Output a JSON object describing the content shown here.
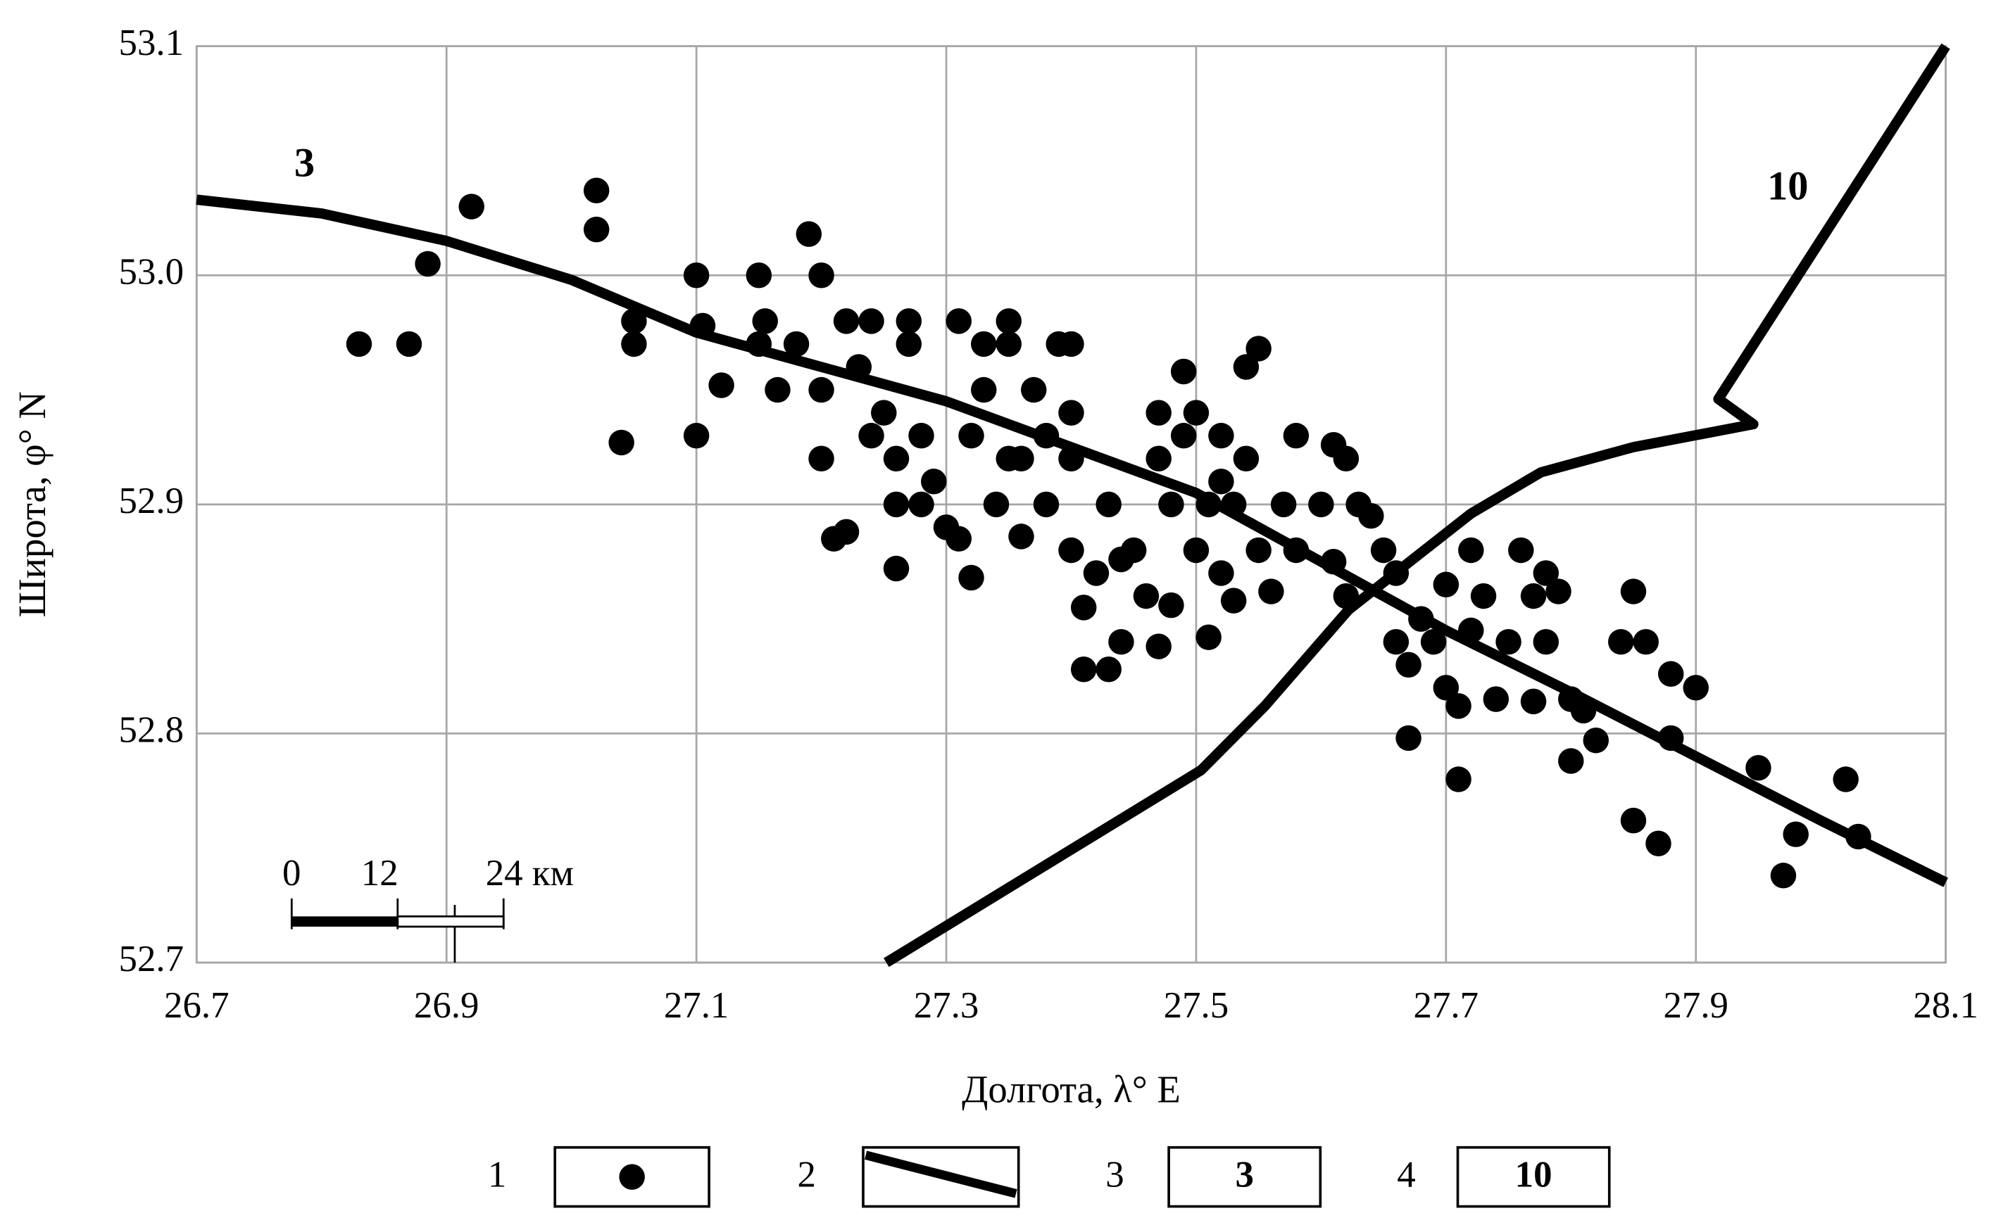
{
  "chart_data": {
    "type": "scatter",
    "xlabel": "Долгота, λ° E",
    "ylabel": "Широта, φ° N",
    "xlim": [
      26.7,
      28.1
    ],
    "ylim": [
      52.7,
      53.1
    ],
    "xticks": [
      26.7,
      26.9,
      27.1,
      27.3,
      27.5,
      27.7,
      27.9,
      28.1
    ],
    "yticks": [
      52.7,
      52.8,
      52.9,
      {
        "value": 53.0,
        "label": "53.0"
      },
      53.1
    ],
    "grid": true,
    "series": [
      {
        "name": "1",
        "color": "#000000",
        "x": [
          26.83,
          26.87,
          26.885,
          26.92,
          27.02,
          27.02,
          27.05,
          27.05,
          27.04,
          27.1,
          27.105,
          27.1,
          27.12,
          27.15,
          27.155,
          27.15,
          27.165,
          27.18,
          27.19,
          27.2,
          27.2,
          27.2,
          27.21,
          27.22,
          27.22,
          27.23,
          27.24,
          27.24,
          27.25,
          27.26,
          27.26,
          27.26,
          27.27,
          27.27,
          27.28,
          27.28,
          27.29,
          27.3,
          27.31,
          27.31,
          27.32,
          27.32,
          27.33,
          27.33,
          27.34,
          27.35,
          27.35,
          27.35,
          27.36,
          27.37,
          27.38,
          27.38,
          27.39,
          27.4,
          27.4,
          27.4,
          27.4,
          27.41,
          27.41,
          27.42,
          27.43,
          27.43,
          27.44,
          27.45,
          27.46,
          27.47,
          27.47,
          27.47,
          27.48,
          27.48,
          27.49,
          27.49,
          27.5,
          27.5,
          27.51,
          27.51,
          27.52,
          27.52,
          27.53,
          27.53,
          27.54,
          27.54,
          27.55,
          27.55,
          27.56,
          27.57,
          27.58,
          27.58,
          27.6,
          27.61,
          27.61,
          27.62,
          27.62,
          27.63,
          27.64,
          27.65,
          27.66,
          27.66,
          27.67,
          27.67,
          27.68,
          27.69,
          27.7,
          27.7,
          27.71,
          27.71,
          27.72,
          27.72,
          27.73,
          27.74,
          27.75,
          27.76,
          27.77,
          27.78,
          27.78,
          27.79,
          27.8,
          27.8,
          27.81,
          27.82,
          27.84,
          27.85,
          27.85,
          27.86,
          27.87,
          27.88,
          27.88,
          27.9,
          27.95,
          27.97,
          27.98,
          28.02,
          28.03,
          27.77,
          27.36,
          27.44,
          27.52
        ],
        "values": [
          52.97,
          52.97,
          53.005,
          53.03,
          53.037,
          53.02,
          52.98,
          52.97,
          52.927,
          53.0,
          52.978,
          52.93,
          52.952,
          53.0,
          52.98,
          52.97,
          52.95,
          52.97,
          53.018,
          53.0,
          52.95,
          52.92,
          52.885,
          52.888,
          52.98,
          52.96,
          52.98,
          52.93,
          52.94,
          52.9,
          52.92,
          52.872,
          52.98,
          52.97,
          52.93,
          52.9,
          52.91,
          52.89,
          52.98,
          52.885,
          52.93,
          52.868,
          52.95,
          52.97,
          52.9,
          52.98,
          52.97,
          52.92,
          52.886,
          52.95,
          52.93,
          52.9,
          52.97,
          52.97,
          52.94,
          52.92,
          52.88,
          52.855,
          52.828,
          52.87,
          52.9,
          52.828,
          52.84,
          52.88,
          52.86,
          52.94,
          52.92,
          52.838,
          52.9,
          52.856,
          52.958,
          52.93,
          52.94,
          52.88,
          52.9,
          52.842,
          52.93,
          52.87,
          52.9,
          52.858,
          52.96,
          52.92,
          52.968,
          52.88,
          52.862,
          52.9,
          52.93,
          52.88,
          52.9,
          52.926,
          52.875,
          52.92,
          52.86,
          52.9,
          52.895,
          52.88,
          52.84,
          52.87,
          52.83,
          52.798,
          52.85,
          52.84,
          52.865,
          52.82,
          52.812,
          52.78,
          52.88,
          52.845,
          52.86,
          52.815,
          52.84,
          52.88,
          52.86,
          52.84,
          52.87,
          52.862,
          52.815,
          52.788,
          52.81,
          52.797,
          52.84,
          52.862,
          52.762,
          52.84,
          52.752,
          52.826,
          52.798,
          52.82,
          52.785,
          52.738,
          52.756,
          52.78,
          52.755,
          52.814,
          52.92,
          52.876,
          52.91
        ]
      }
    ],
    "lines": [
      {
        "label": "3",
        "color": "#000000",
        "x": [
          26.7,
          26.8,
          26.9,
          27.0,
          27.1,
          27.2,
          27.3,
          27.4,
          27.5,
          27.6,
          27.7,
          27.8,
          27.9,
          28.0,
          28.1
        ],
        "values": [
          53.033,
          53.027,
          53.015,
          52.998,
          52.975,
          52.96,
          52.945,
          52.925,
          52.905,
          52.875,
          52.845,
          52.818,
          52.79,
          52.762,
          52.735
        ]
      },
      {
        "label": "10",
        "color": "#000000",
        "x": [
          27.252,
          27.504,
          27.555,
          27.622,
          27.72,
          27.776,
          27.85,
          27.946,
          27.918,
          28.1
        ],
        "values": [
          52.7,
          52.784,
          52.812,
          52.854,
          52.896,
          52.914,
          52.925,
          52.935,
          52.946,
          53.1
        ]
      }
    ],
    "scale_bar": {
      "ticks": [
        0,
        12,
        {
          "value": 24,
          "label": "24 км"
        }
      ]
    },
    "legend": [
      {
        "label": "1"
      },
      {
        "label": "2"
      },
      {
        "label": "3",
        "sample": "3"
      },
      {
        "label": "4",
        "sample": "10"
      }
    ]
  }
}
